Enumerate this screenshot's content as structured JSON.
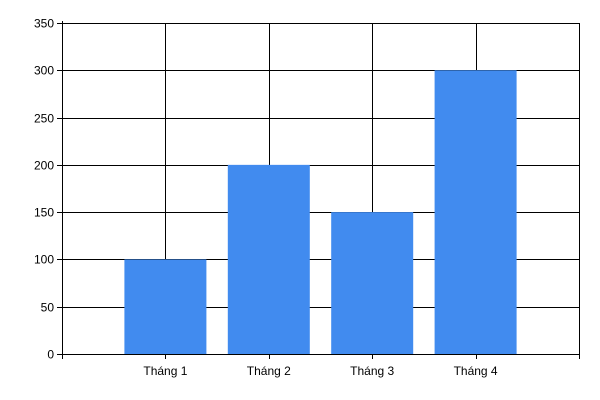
{
  "chart_data": {
    "type": "bar",
    "categories": [
      "Tháng 1",
      "Tháng 2",
      "Tháng 3",
      "Tháng 4"
    ],
    "values": [
      100,
      200,
      150,
      300
    ],
    "title": "",
    "xlabel": "",
    "ylabel": "",
    "ylim": [
      0,
      350
    ],
    "yticks": [
      0,
      50,
      100,
      150,
      200,
      250,
      300,
      350
    ],
    "grid": true,
    "legend": "none"
  },
  "colors": {
    "bar": "#418BEF",
    "grid": "#000000",
    "background": "#FFFFFF"
  }
}
